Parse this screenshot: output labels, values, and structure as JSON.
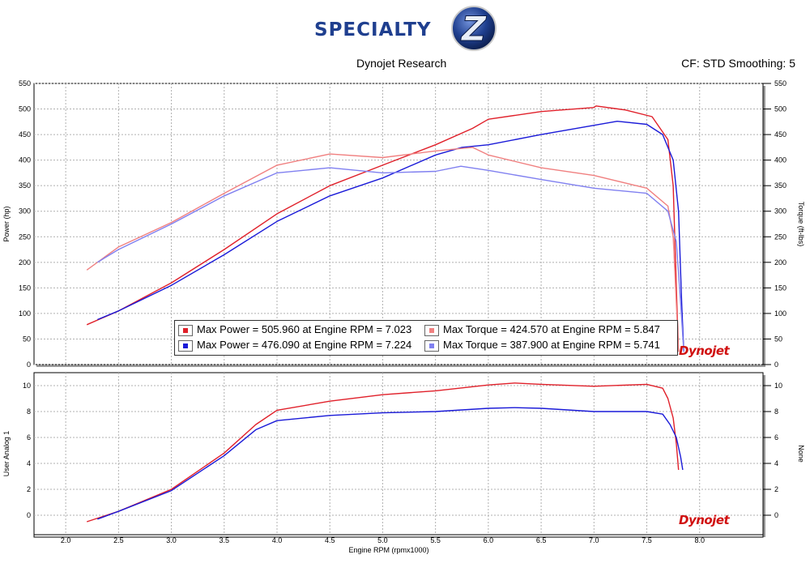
{
  "header": {
    "logo_text": "SPECIALTY",
    "logo_letter": "Z",
    "subtitle": "Dynojet Research",
    "cf_info": "CF: STD Smoothing: 5"
  },
  "watermark": "Dynojet",
  "legend": [
    {
      "label": "Max Power = 505.960 at Engine RPM = 7.023",
      "color": "#e0202a"
    },
    {
      "label": "Max Torque = 424.570 at Engine RPM = 5.847",
      "color": "#f08080"
    },
    {
      "label": "Max Power = 476.090 at Engine RPM = 7.224",
      "color": "#1a1ad8"
    },
    {
      "label": "Max Torque = 387.900 at Engine RPM = 5.741",
      "color": "#8080f0"
    }
  ],
  "chart_data": [
    {
      "type": "line",
      "xlim": [
        1.7,
        8.6
      ],
      "ylim": [
        0,
        550
      ],
      "ylabel": "Power (hp)",
      "y2label": "Torque (ft-lbs)",
      "x_ticks": [
        "2.0",
        "2.5",
        "3.0",
        "3.5",
        "4.0",
        "4.5",
        "5.0",
        "5.5",
        "6.0",
        "6.5",
        "7.0",
        "7.5",
        "8.0"
      ],
      "y_ticks": [
        "0",
        "50",
        "100",
        "150",
        "200",
        "250",
        "300",
        "350",
        "400",
        "450",
        "500",
        "550"
      ],
      "grid": true,
      "legend_position": "bottom-center",
      "series": [
        {
          "color": "#e0202a",
          "x": [
            2.2,
            2.5,
            3.0,
            3.5,
            4.0,
            4.5,
            5.0,
            5.5,
            5.85,
            6.0,
            6.5,
            7.0,
            7.02,
            7.3,
            7.55,
            7.7,
            7.75,
            7.78,
            7.8
          ],
          "y": [
            78,
            105,
            160,
            225,
            295,
            350,
            390,
            430,
            462,
            480,
            495,
            503,
            506,
            498,
            485,
            440,
            350,
            150,
            25
          ]
        },
        {
          "color": "#1a1ad8",
          "x": [
            2.3,
            2.5,
            3.0,
            3.5,
            4.0,
            4.5,
            5.0,
            5.5,
            5.75,
            6.0,
            6.5,
            7.0,
            7.22,
            7.5,
            7.65,
            7.75,
            7.8,
            7.83,
            7.85
          ],
          "y": [
            88,
            105,
            155,
            215,
            280,
            330,
            365,
            410,
            425,
            430,
            450,
            468,
            476,
            470,
            450,
            400,
            300,
            120,
            25
          ]
        },
        {
          "color": "#f08080",
          "x": [
            2.2,
            2.5,
            3.0,
            3.5,
            4.0,
            4.5,
            5.0,
            5.5,
            5.85,
            6.0,
            6.5,
            7.0,
            7.5,
            7.7,
            7.75,
            7.78,
            7.8
          ],
          "y": [
            185,
            230,
            278,
            335,
            390,
            412,
            405,
            418,
            425,
            410,
            385,
            370,
            345,
            310,
            250,
            120,
            25
          ]
        },
        {
          "color": "#8080f0",
          "x": [
            2.3,
            2.5,
            3.0,
            3.5,
            4.0,
            4.5,
            5.0,
            5.5,
            5.74,
            6.0,
            6.5,
            7.0,
            7.5,
            7.7,
            7.78,
            7.82,
            7.85
          ],
          "y": [
            200,
            225,
            275,
            330,
            375,
            385,
            375,
            378,
            388,
            380,
            362,
            345,
            335,
            300,
            240,
            120,
            25
          ]
        }
      ]
    },
    {
      "type": "line",
      "xlim": [
        1.7,
        8.6
      ],
      "ylim": [
        -1.5,
        11
      ],
      "ylabel": "User Analog 1",
      "y2label": "None",
      "xlabel": "Engine RPM (rpmx1000)",
      "x_ticks": [
        "2.0",
        "2.5",
        "3.0",
        "3.5",
        "4.0",
        "4.5",
        "5.0",
        "5.5",
        "6.0",
        "6.5",
        "7.0",
        "7.5",
        "8.0"
      ],
      "y_ticks": [
        "0",
        "2",
        "4",
        "6",
        "8",
        "10"
      ],
      "grid": true,
      "series": [
        {
          "color": "#e0202a",
          "x": [
            2.2,
            2.5,
            3.0,
            3.5,
            3.8,
            4.0,
            4.5,
            5.0,
            5.5,
            6.0,
            6.25,
            6.5,
            7.0,
            7.5,
            7.65,
            7.7,
            7.75,
            7.78,
            7.8
          ],
          "y": [
            -0.5,
            0.3,
            2.0,
            4.8,
            7.0,
            8.1,
            8.8,
            9.3,
            9.6,
            10.05,
            10.2,
            10.1,
            9.95,
            10.1,
            9.8,
            9.0,
            7.5,
            5.5,
            3.5
          ]
        },
        {
          "color": "#1a1ad8",
          "x": [
            2.3,
            2.5,
            3.0,
            3.5,
            3.8,
            4.0,
            4.5,
            5.0,
            5.5,
            6.0,
            6.25,
            6.5,
            7.0,
            7.5,
            7.65,
            7.72,
            7.78,
            7.82,
            7.84
          ],
          "y": [
            -0.3,
            0.3,
            1.9,
            4.6,
            6.6,
            7.3,
            7.7,
            7.9,
            8.0,
            8.25,
            8.3,
            8.25,
            8.0,
            8.0,
            7.8,
            7.0,
            6.0,
            4.5,
            3.5
          ]
        }
      ]
    }
  ]
}
